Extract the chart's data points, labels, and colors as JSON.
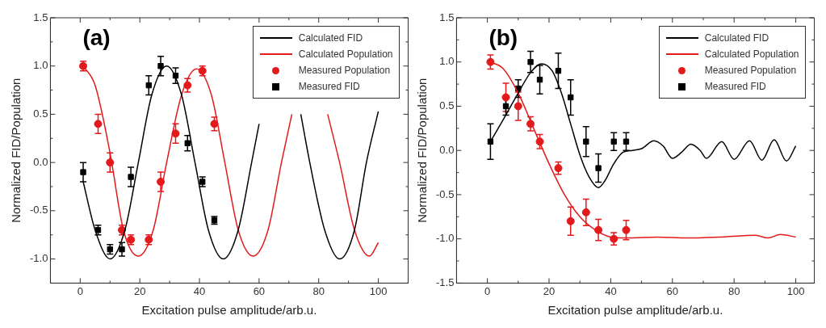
{
  "chart_data": [
    {
      "type": "line",
      "annotations": [
        "(a)"
      ],
      "xlabel": "Excitation pulse amplitude/arb.u.",
      "ylabel": "Normalized FID/Population",
      "xlim": [
        -10,
        110
      ],
      "ylim": [
        -1.25,
        1.5
      ],
      "xticks": [
        0,
        {
          "value": 10,
          "label": null
        },
        20,
        {
          "value": 30,
          "label": null
        },
        40,
        {
          "value": 50,
          "label": null
        },
        60,
        {
          "value": 70,
          "label": null
        },
        80,
        {
          "value": 90,
          "label": null
        },
        100
      ],
      "yticks": [
        {
          "value": -1,
          "label": "-1.0"
        },
        {
          "value": -0.75,
          "label": null
        },
        -0.5,
        {
          "value": -0.25,
          "label": null
        },
        {
          "value": 0,
          "label": "0.0"
        },
        {
          "value": 0.25,
          "label": null
        },
        0.5,
        {
          "value": 0.75,
          "label": null
        },
        {
          "value": 1,
          "label": "1.0"
        },
        {
          "value": 1.25,
          "label": null
        },
        1.5
      ],
      "legend": "top right",
      "grid": false,
      "series": [
        {
          "name": "Calculated FID",
          "type": "line",
          "color": "#000000",
          "x": [
            1,
            5,
            10,
            15,
            19.5,
            24,
            29,
            34,
            38.5,
            43,
            48,
            53,
            57.5,
            60,
            63,
            67,
            71,
            74,
            77,
            82,
            87,
            92,
            96,
            100
          ],
          "values": [
            -0.2,
            -0.7,
            -1.0,
            -0.7,
            0,
            0.7,
            1.0,
            0.7,
            0,
            -0.7,
            -1.0,
            -0.7,
            0,
            0.4,
            null,
            null,
            null,
            0.5,
            0,
            -0.7,
            -1.0,
            -0.7,
            0,
            0.53
          ]
        },
        {
          "name": "Calculated Population",
          "type": "line",
          "color": "#e31a1c",
          "x": [
            1,
            5,
            10,
            14.5,
            19.5,
            24.5,
            29,
            34,
            39,
            44,
            48.5,
            53,
            58,
            63,
            67.5,
            71,
            74,
            77,
            80,
            83,
            87,
            92,
            97,
            100
          ],
          "values": [
            1.0,
            0.8,
            0.1,
            -0.7,
            -0.97,
            -0.7,
            0,
            0.7,
            0.97,
            0.7,
            0,
            -0.7,
            -0.97,
            -0.7,
            0,
            0.5,
            null,
            null,
            null,
            0.5,
            0,
            -0.7,
            -0.97,
            -0.83
          ]
        },
        {
          "name": "Measured Population",
          "type": "scatter",
          "marker": "circle",
          "color": "#e31a1c",
          "x": [
            1,
            6,
            10,
            14,
            17,
            23,
            27,
            32,
            36,
            41,
            45
          ],
          "values": [
            1.0,
            0.4,
            0.0,
            -0.7,
            -0.8,
            -0.8,
            -0.2,
            0.3,
            0.8,
            0.95,
            0.4
          ],
          "errors": [
            0.05,
            0.1,
            0.1,
            0.05,
            0.05,
            0.05,
            0.1,
            0.1,
            0.07,
            0.05,
            0.07
          ]
        },
        {
          "name": "Measured FID",
          "type": "scatter",
          "marker": "square",
          "color": "#000000",
          "x": [
            1,
            6,
            10,
            14,
            17,
            23,
            27,
            32,
            36,
            41,
            45
          ],
          "values": [
            -0.1,
            -0.7,
            -0.9,
            -0.9,
            -0.15,
            0.8,
            1.0,
            0.9,
            0.2,
            -0.2,
            -0.6
          ],
          "errors": [
            0.1,
            0.05,
            0.05,
            0.07,
            0.1,
            0.1,
            0.1,
            0.08,
            0.08,
            0.05,
            0.04
          ]
        }
      ]
    },
    {
      "type": "line",
      "annotations": [
        "(b)"
      ],
      "xlabel": "Excitation pulse amplitude/arb.u.",
      "ylabel": "Normalized FID/Population",
      "xlim": [
        -10,
        106
      ],
      "ylim": [
        -1.5,
        1.5
      ],
      "xticks": [
        0,
        {
          "value": 10,
          "label": null
        },
        20,
        {
          "value": 30,
          "label": null
        },
        40,
        {
          "value": 50,
          "label": null
        },
        60,
        {
          "value": 70,
          "label": null
        },
        80,
        {
          "value": 90,
          "label": null
        },
        100
      ],
      "yticks": [
        -1.5,
        {
          "value": -1.25,
          "label": null
        },
        {
          "value": -1,
          "label": "-1.0"
        },
        {
          "value": -0.75,
          "label": null
        },
        -0.5,
        {
          "value": -0.25,
          "label": null
        },
        {
          "value": 0,
          "label": "0.0"
        },
        {
          "value": 0.25,
          "label": null
        },
        0.5,
        {
          "value": 0.75,
          "label": null
        },
        {
          "value": 1,
          "label": "1.0"
        },
        {
          "value": 1.25,
          "label": null
        },
        1.5
      ],
      "legend": "top right",
      "grid": false,
      "series": [
        {
          "name": "Calculated FID",
          "type": "line",
          "color": "#000000",
          "x": [
            1,
            6,
            10,
            14,
            17.5,
            21,
            24,
            27,
            30,
            33,
            36,
            38,
            41,
            44,
            47,
            50,
            54,
            57,
            60,
            63,
            66,
            69,
            71,
            76,
            80,
            85,
            89,
            93,
            97,
            100
          ],
          "values": [
            0.1,
            0.4,
            0.65,
            0.88,
            0.98,
            0.9,
            0.65,
            0.3,
            -0.05,
            -0.3,
            -0.42,
            -0.35,
            -0.15,
            -0.02,
            0.0,
            0.02,
            0.11,
            0.05,
            -0.09,
            -0.02,
            0.07,
            0.0,
            -0.09,
            0.1,
            -0.1,
            0.11,
            -0.11,
            0.12,
            -0.12,
            0.05
          ]
        },
        {
          "name": "Calculated Population",
          "type": "line",
          "color": "#e31a1c",
          "x": [
            1,
            5,
            10,
            15,
            20,
            25,
            30,
            35,
            40,
            45,
            55,
            65,
            75,
            87,
            91,
            95,
            100
          ],
          "values": [
            1.0,
            0.93,
            0.65,
            0.25,
            -0.15,
            -0.5,
            -0.75,
            -0.9,
            -0.98,
            -0.99,
            -0.98,
            -0.99,
            -0.98,
            -0.96,
            -0.99,
            -0.95,
            -0.98
          ]
        },
        {
          "name": "Measured Population",
          "type": "scatter",
          "marker": "circle",
          "color": "#e31a1c",
          "x": [
            1,
            6,
            10,
            14,
            17,
            23,
            27,
            32,
            36,
            41,
            45
          ],
          "values": [
            1.0,
            0.6,
            0.5,
            0.3,
            0.1,
            -0.2,
            -0.8,
            -0.7,
            -0.9,
            -1.0,
            -0.9
          ],
          "errors": [
            0.08,
            0.16,
            0.16,
            0.08,
            0.08,
            0.07,
            0.16,
            0.15,
            0.12,
            0.07,
            0.11
          ]
        },
        {
          "name": "Measured FID",
          "type": "scatter",
          "marker": "square",
          "color": "#000000",
          "x": [
            1,
            6,
            10,
            14,
            17,
            23,
            27,
            32,
            36,
            41,
            45
          ],
          "values": [
            0.1,
            0.5,
            0.7,
            1.0,
            0.8,
            0.9,
            0.6,
            0.1,
            -0.2,
            0.1,
            0.1
          ],
          "errors": [
            0.2,
            0.1,
            0.1,
            0.12,
            0.16,
            0.2,
            0.2,
            0.17,
            0.16,
            0.1,
            0.1
          ]
        }
      ]
    }
  ]
}
